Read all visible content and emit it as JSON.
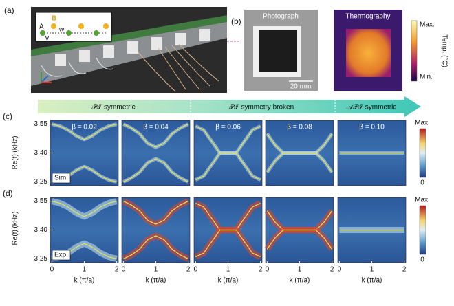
{
  "panel_labels": [
    "(a)",
    "(b)",
    "(c)",
    "(d)"
  ],
  "panel_a": {
    "inset_labels": [
      "A",
      "B",
      "v",
      "w"
    ]
  },
  "panel_b": {
    "photo_title": "Photograph",
    "scale_bar": "20 mm",
    "thermo_title": "Thermography",
    "colorbar": {
      "max": "Max.",
      "min": "Min.",
      "label": "Temp. (°C)"
    }
  },
  "phases": [
    "𝒫𝒯 symmetric",
    "𝒫𝒯 symmetry broken",
    "𝒜𝒫𝒯 symmetric"
  ],
  "figure": {
    "y_label": "Re(f) (kHz)",
    "x_label": "k (π/a)",
    "row_labels": [
      "Sim.",
      "Exp."
    ],
    "colorbar": {
      "max": "Max.",
      "min": "0"
    },
    "ylim": [
      3.23,
      3.57
    ],
    "yticks": [
      3.55,
      {
        "value": 3.4,
        "label": "3.40"
      },
      3.25
    ],
    "xlim": [
      -0.05,
      2.05
    ],
    "xticks": [
      0,
      1,
      2
    ],
    "k": [
      0,
      0.25,
      0.5,
      0.75,
      1,
      1.25,
      1.5,
      1.75,
      2
    ],
    "columns": [
      {
        "beta": "β = 0.02",
        "bands": [
          [
            3.55,
            3.54,
            3.52,
            3.49,
            3.47,
            3.49,
            3.52,
            3.54,
            3.55
          ],
          [
            3.25,
            3.26,
            3.28,
            3.31,
            3.33,
            3.31,
            3.28,
            3.26,
            3.25
          ]
        ]
      },
      {
        "beta": "β = 0.04",
        "bands": [
          [
            3.55,
            3.53,
            3.5,
            3.45,
            3.43,
            3.45,
            3.5,
            3.53,
            3.55
          ],
          [
            3.25,
            3.27,
            3.3,
            3.35,
            3.37,
            3.35,
            3.3,
            3.27,
            3.25
          ]
        ]
      },
      {
        "beta": "β = 0.06",
        "bands": [
          [
            3.54,
            3.52,
            3.46,
            3.4,
            3.4,
            3.4,
            3.46,
            3.52,
            3.54
          ],
          [
            3.26,
            3.28,
            3.34,
            3.4,
            3.4,
            3.4,
            3.34,
            3.28,
            3.26
          ]
        ]
      },
      {
        "beta": "β = 0.08",
        "bands": [
          [
            3.5,
            3.44,
            3.4,
            3.4,
            3.4,
            3.4,
            3.4,
            3.44,
            3.5
          ],
          [
            3.3,
            3.36,
            3.4,
            3.4,
            3.4,
            3.4,
            3.4,
            3.36,
            3.3
          ]
        ]
      },
      {
        "beta": "β = 0.10",
        "bands": [
          [
            3.4,
            3.4,
            3.4,
            3.4,
            3.4,
            3.4,
            3.4,
            3.4,
            3.4
          ]
        ]
      }
    ]
  }
}
